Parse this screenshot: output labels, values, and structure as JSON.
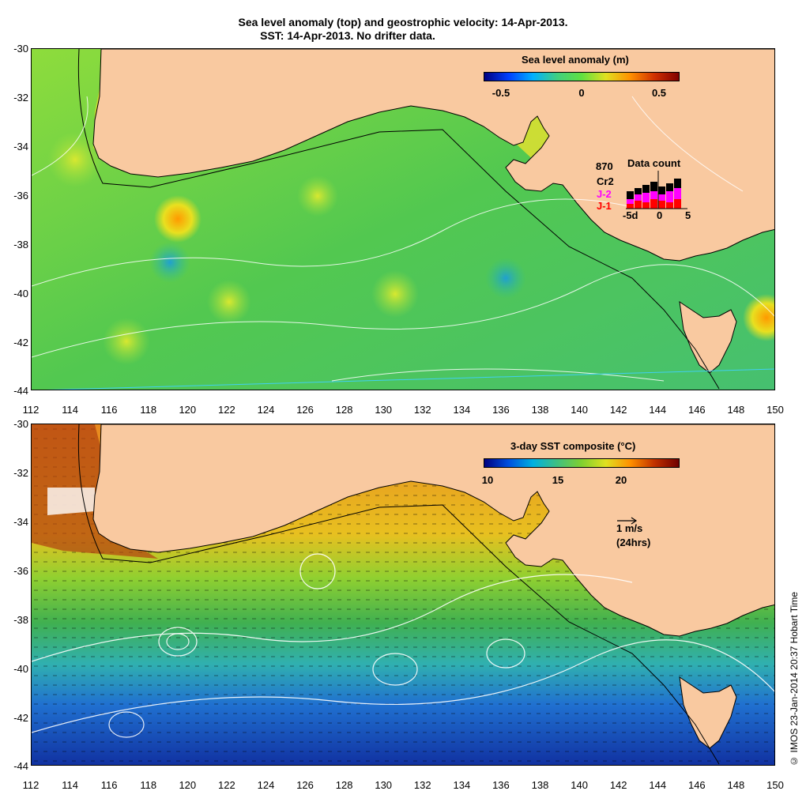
{
  "title_line1": "Sea level anomaly (top) and geostrophic velocity: 14-Apr-2013.",
  "title_line2": "SST: 14-Apr-2013. No drifter data.",
  "top_panel": {
    "colorbar_title": "Sea level anomaly (m)",
    "colorbar_ticks": [
      "-0.5",
      "0",
      "0.5"
    ],
    "data_count": {
      "title": "Data count",
      "total": "870",
      "missions": [
        "Cr2",
        "J-2",
        "J-1"
      ],
      "mission_colors": [
        "#000000",
        "#ff00ff",
        "#ff0000"
      ],
      "x_ticks": [
        "-5d",
        "0",
        "5"
      ]
    }
  },
  "bottom_panel": {
    "colorbar_title": "3-day SST composite (°C)",
    "colorbar_ticks": [
      "10",
      "15",
      "20"
    ],
    "vector_scale": "1 m/s",
    "vector_period": "(24hrs)"
  },
  "y_ticks": [
    "-30",
    "-32",
    "-34",
    "-36",
    "-38",
    "-40",
    "-42",
    "-44"
  ],
  "x_ticks": [
    "112",
    "114",
    "116",
    "118",
    "120",
    "122",
    "124",
    "126",
    "128",
    "130",
    "132",
    "134",
    "136",
    "138",
    "140",
    "142",
    "144",
    "146",
    "148",
    "150"
  ],
  "credit": "© IMOS 23-Jan-2014 20:37 Hobart Time",
  "colors": {
    "land": "#f9c9a0",
    "sla_ocean": "#5cd03c",
    "sst_warm": "#e09020",
    "sst_cold": "#1840b0"
  }
}
